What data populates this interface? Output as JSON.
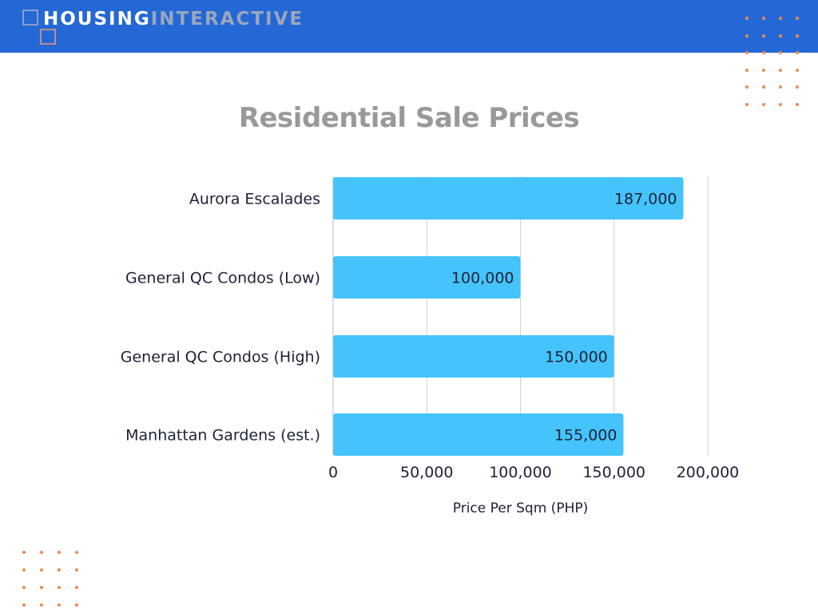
{
  "header": {
    "logo_word1": "HOUSING",
    "logo_word2": "INTERACTIVE",
    "background": "#2468d5"
  },
  "accent_dot_color": "#ee8a4f",
  "chart_data": {
    "type": "bar",
    "orientation": "horizontal",
    "title": "Residential Sale Prices",
    "categories": [
      "Aurora Escalades",
      "General QC Condos (Low)",
      "General QC Condos (High)",
      "Manhattan Gardens (est.)"
    ],
    "values": [
      187000,
      100000,
      150000,
      155000
    ],
    "data_labels": [
      "187,000",
      "100,000",
      "150,000",
      "155,000"
    ],
    "xlabel": "Price Per Sqm (PHP)",
    "ylabel": "",
    "xlim": [
      0,
      200000
    ],
    "x_ticks": [
      0,
      50000,
      100000,
      150000,
      200000
    ],
    "x_tick_labels": [
      "0",
      "50,000",
      "100,000",
      "150,000",
      "200,000"
    ],
    "grid": true,
    "legend": "none",
    "bar_color": "#45c3fb",
    "text_color": "#1c2236",
    "grid_color": "#d0d0d0"
  }
}
